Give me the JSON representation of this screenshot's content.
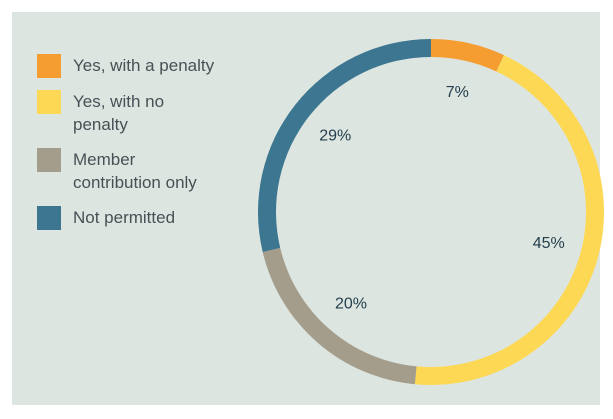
{
  "chart_data": {
    "type": "pie",
    "categories": [
      "Yes, with a penalty",
      "Yes, with no penalty",
      "Member contribution only",
      "Not permitted"
    ],
    "values": [
      7,
      45,
      20,
      29
    ],
    "value_labels": [
      "7%",
      "45%",
      "20%",
      "29%"
    ],
    "colors": [
      "#f59d31",
      "#fdd854",
      "#a49d8b",
      "#3c7690"
    ],
    "donut": true,
    "legend": "left"
  }
}
